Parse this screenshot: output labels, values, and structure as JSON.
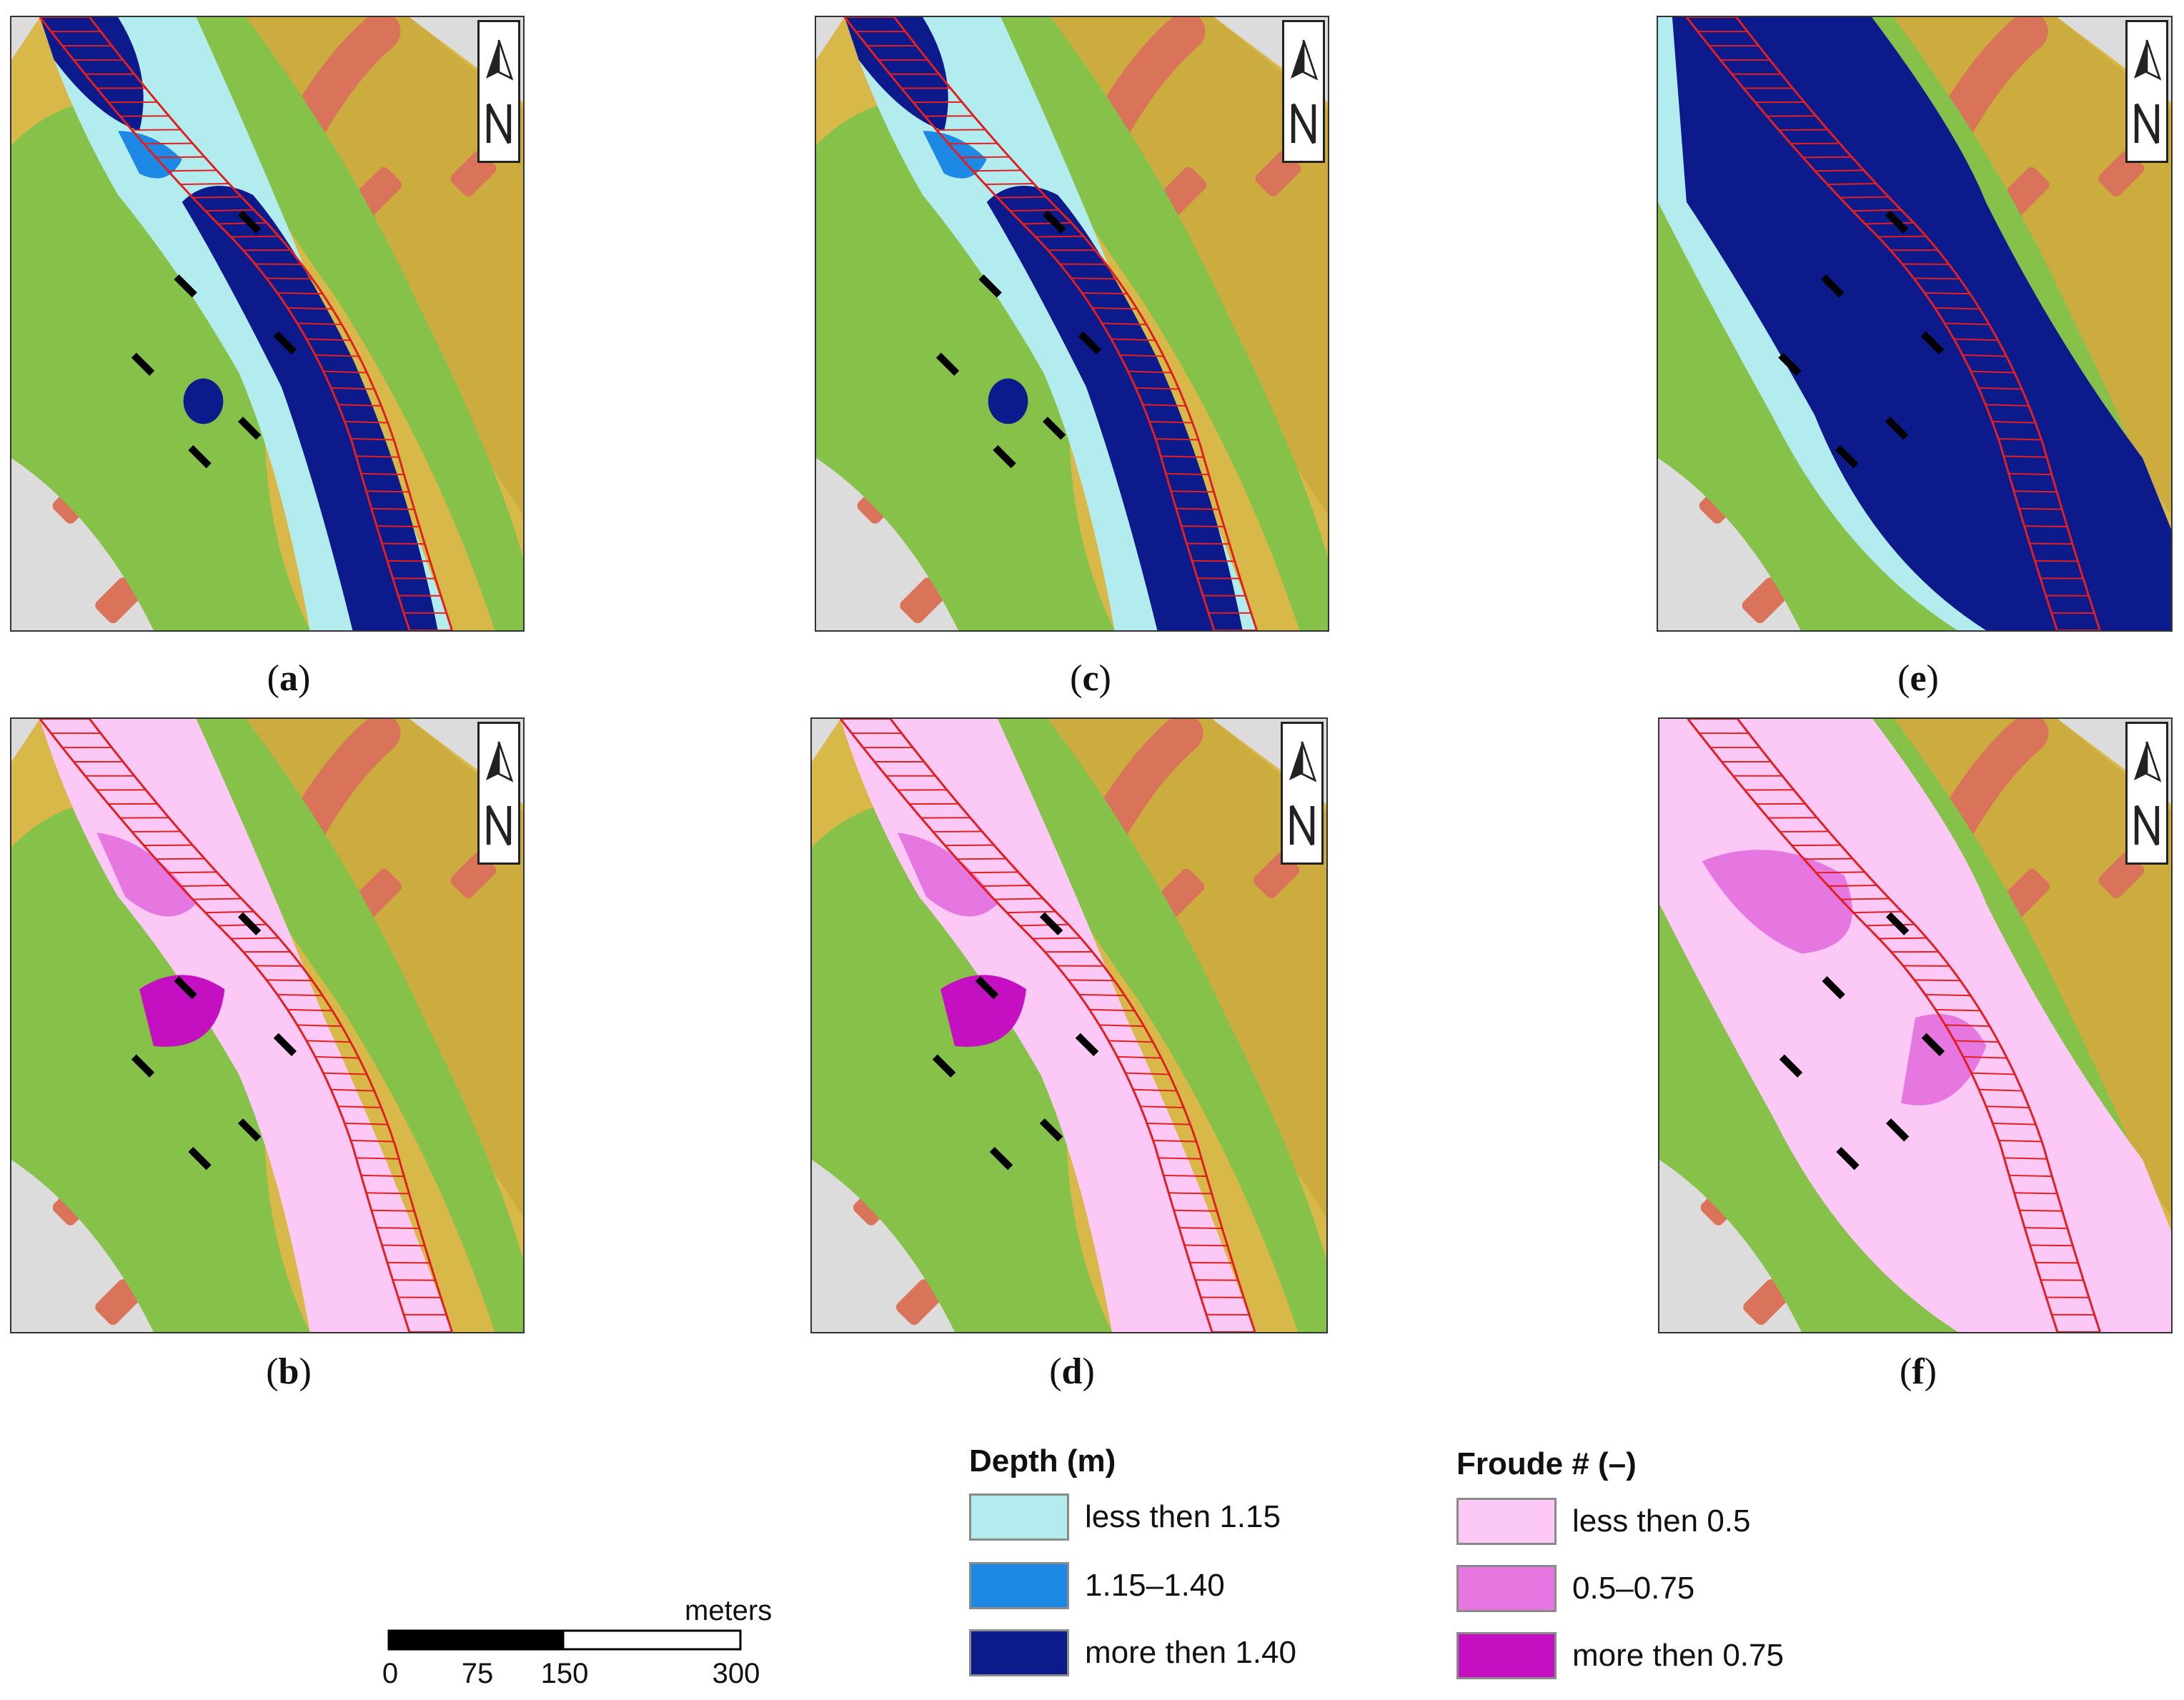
{
  "panels": [
    {
      "id": "a",
      "label": "a",
      "mode": "depth-low"
    },
    {
      "id": "b",
      "label": "b",
      "mode": "froude-low"
    },
    {
      "id": "c",
      "label": "c",
      "mode": "depth-mid"
    },
    {
      "id": "d",
      "label": "d",
      "mode": "froude-mid"
    },
    {
      "id": "e",
      "label": "e",
      "mode": "depth-high"
    },
    {
      "id": "f",
      "label": "f",
      "mode": "froude-high"
    }
  ],
  "legend": {
    "depth": {
      "title": "Depth (m)",
      "items": [
        {
          "label": "less then 1.15",
          "color": "#b3ecee"
        },
        {
          "label": "1.15–1.40",
          "color": "#1e88e5"
        },
        {
          "label": "more then 1.40",
          "color": "#0d1a8c"
        }
      ]
    },
    "froude": {
      "title": "Froude # (–)",
      "items": [
        {
          "label": "less then 0.5",
          "color": "#fcc8f6"
        },
        {
          "label": "0.5–0.75",
          "color": "#e676e0"
        },
        {
          "label": "more then 0.75",
          "color": "#c410c0"
        }
      ]
    }
  },
  "scale": {
    "unit": "meters",
    "ticks": [
      "0",
      "75",
      "150",
      "300"
    ]
  },
  "colors": {
    "terrain_high": "#c8a63c",
    "terrain_mid": "#d8b848",
    "vegetation": "#86c24a",
    "building": "#d9735a",
    "channel_hatch": "#e02020",
    "pier": "#000000"
  }
}
